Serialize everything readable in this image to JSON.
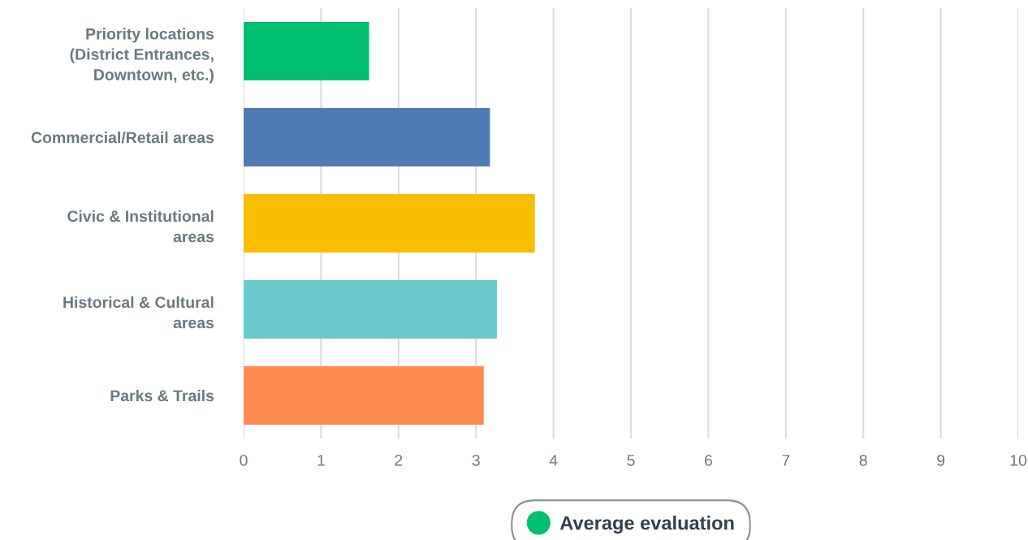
{
  "chart_data": {
    "type": "bar",
    "orientation": "horizontal",
    "categories": [
      "Priority locations (District Entrances, Downtown, etc.)",
      "Commercial/Retail areas",
      "Civic & Institutional areas",
      "Historical & Cultural areas",
      "Parks & Trails"
    ],
    "series": [
      {
        "name": "Average evaluation",
        "color": "#00bf6f",
        "colors": [
          "#00bf6f",
          "#507cb6",
          "#f9be00",
          "#6bc8cd",
          "#ff8b4f"
        ],
        "values": [
          1.62,
          3.18,
          3.76,
          3.27,
          3.1
        ]
      }
    ],
    "xlim": [
      0,
      10
    ],
    "xticks": [
      0,
      1,
      2,
      3,
      4,
      5,
      6,
      7,
      8,
      9,
      10
    ],
    "grid": "x",
    "legend": "bottom"
  }
}
